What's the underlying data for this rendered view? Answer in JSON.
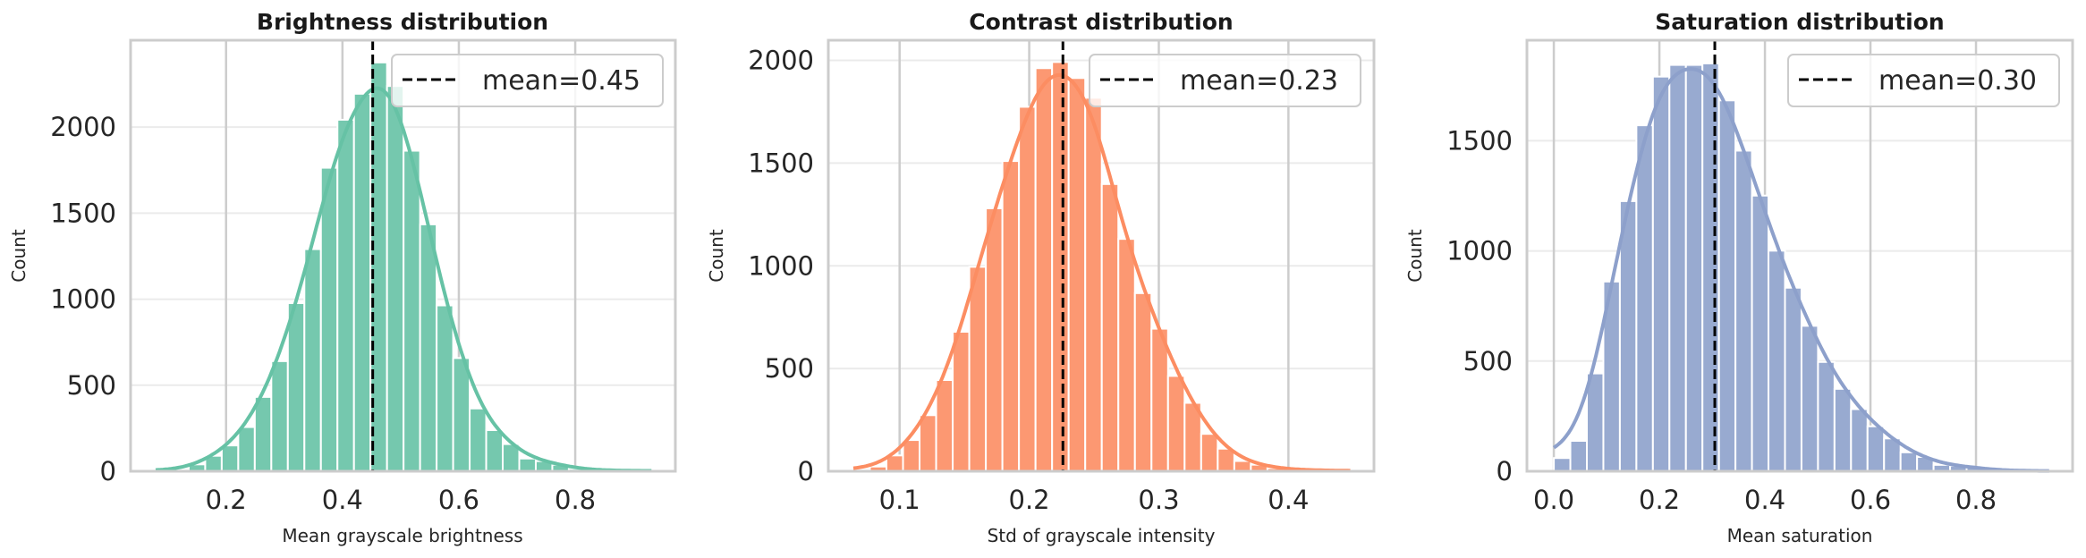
{
  "chart_data": [
    {
      "type": "bar",
      "title": "Brightness distribution",
      "xlabel": "Mean grayscale brightness",
      "ylabel": "Count",
      "color": "#66c2a5",
      "bin_range": [
        0.079,
        0.931
      ],
      "values": [
        3,
        10,
        40,
        90,
        150,
        257,
        432,
        640,
        977,
        1291,
        1764,
        2043,
        2194,
        2376,
        2239,
        1863,
        1435,
        964,
        658,
        365,
        239,
        158,
        74,
        59,
        38,
        14,
        8,
        5,
        3,
        2
      ],
      "xlim": [
        0.036,
        0.972
      ],
      "ylim": [
        0,
        2505
      ],
      "xticks": [
        "0.2",
        "0.4",
        "0.6",
        "0.8"
      ],
      "yticks": [
        "0",
        "500",
        "1000",
        "1500",
        "2000"
      ],
      "mean": 0.452,
      "legend": "mean=0.45",
      "legend_position": "top-right",
      "kde": true,
      "grid": true
    },
    {
      "type": "bar",
      "title": "Contrast distribution",
      "xlabel": "Std of grayscale intensity",
      "ylabel": "Count",
      "color": "#fc8d62",
      "bin_range": [
        0.0643,
        0.4477
      ],
      "values": [
        5,
        23,
        77,
        152,
        273,
        444,
        679,
        995,
        1280,
        1510,
        1774,
        1962,
        1992,
        1914,
        1818,
        1398,
        1131,
        867,
        694,
        464,
        333,
        182,
        110,
        50,
        32,
        15,
        9,
        6,
        4,
        2
      ],
      "xlim": [
        0.045,
        0.466
      ],
      "ylim": [
        0,
        2098
      ],
      "xticks": [
        "0.1",
        "0.2",
        "0.3",
        "0.4"
      ],
      "yticks": [
        "0",
        "500",
        "1000",
        "1500",
        "2000"
      ],
      "mean": 0.226,
      "legend": "mean=0.23",
      "legend_position": "top-right",
      "kde": true,
      "grid": true
    },
    {
      "type": "bar",
      "title": "Saturation distribution",
      "xlabel": "Mean saturation",
      "ylabel": "Count",
      "color": "#8da0cb",
      "bin_range": [
        0.0,
        0.9386
      ],
      "values": [
        60,
        138,
        444,
        861,
        1226,
        1570,
        1791,
        1844,
        1844,
        1851,
        1683,
        1455,
        1251,
        1001,
        833,
        660,
        496,
        374,
        282,
        204,
        149,
        86,
        65,
        29,
        25,
        18,
        6,
        4,
        2,
        1
      ],
      "xlim": [
        -0.051,
        0.983
      ],
      "ylim": [
        0,
        1956
      ],
      "xticks": [
        "0.0",
        "0.2",
        "0.4",
        "0.6",
        "0.8"
      ],
      "yticks": [
        "0",
        "500",
        "1000",
        "1500"
      ],
      "mean": 0.305,
      "legend": "mean=0.30",
      "legend_position": "top-right",
      "kde": true,
      "grid": true
    }
  ]
}
